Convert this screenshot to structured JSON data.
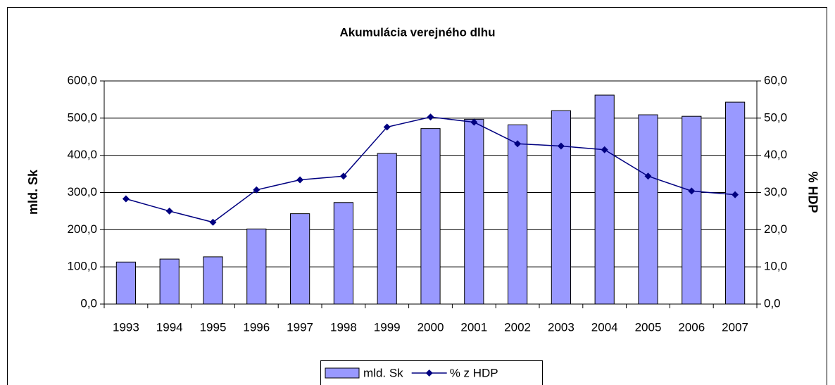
{
  "chart_data": {
    "type": "bar-line",
    "title": "Akumulácia verejného dlhu",
    "y_label": "mld. Sk",
    "y2_label": "% HDP",
    "categories": [
      "1993",
      "1994",
      "1995",
      "1996",
      "1997",
      "1998",
      "1999",
      "2000",
      "2001",
      "2002",
      "2003",
      "2004",
      "2005",
      "2006",
      "2007"
    ],
    "series": [
      {
        "name": "mld. Sk",
        "type": "bar",
        "color": "#9999ff",
        "axis": "y",
        "values": [
          113,
          121,
          127,
          202,
          243,
          273,
          405,
          472,
          497,
          482,
          520,
          562,
          509,
          505,
          543
        ]
      },
      {
        "name": "% z HDP",
        "type": "line",
        "color": "#000080",
        "axis": "y2",
        "values": [
          28.3,
          25.0,
          22.0,
          30.7,
          33.4,
          34.4,
          47.6,
          50.3,
          48.9,
          43.1,
          42.5,
          41.5,
          34.4,
          30.4,
          29.4
        ]
      }
    ],
    "ylim": [
      0,
      600
    ],
    "yticks": [
      {
        "value": 0,
        "label": "0,0"
      },
      {
        "value": 100,
        "label": "100,0"
      },
      {
        "value": 200,
        "label": "200,0"
      },
      {
        "value": 300,
        "label": "300,0"
      },
      {
        "value": 400,
        "label": "400,0"
      },
      {
        "value": 500,
        "label": "500,0"
      },
      {
        "value": 600,
        "label": "600,0"
      }
    ],
    "y2lim": [
      0,
      60
    ],
    "y2ticks": [
      {
        "value": 0,
        "label": "0,0"
      },
      {
        "value": 10,
        "label": "10,0"
      },
      {
        "value": 20,
        "label": "20,0"
      },
      {
        "value": 30,
        "label": "30,0"
      },
      {
        "value": 40,
        "label": "40,0"
      },
      {
        "value": 50,
        "label": "50,0"
      },
      {
        "value": 60,
        "label": "60,0"
      }
    ],
    "grid": true,
    "legend": "bottom"
  }
}
